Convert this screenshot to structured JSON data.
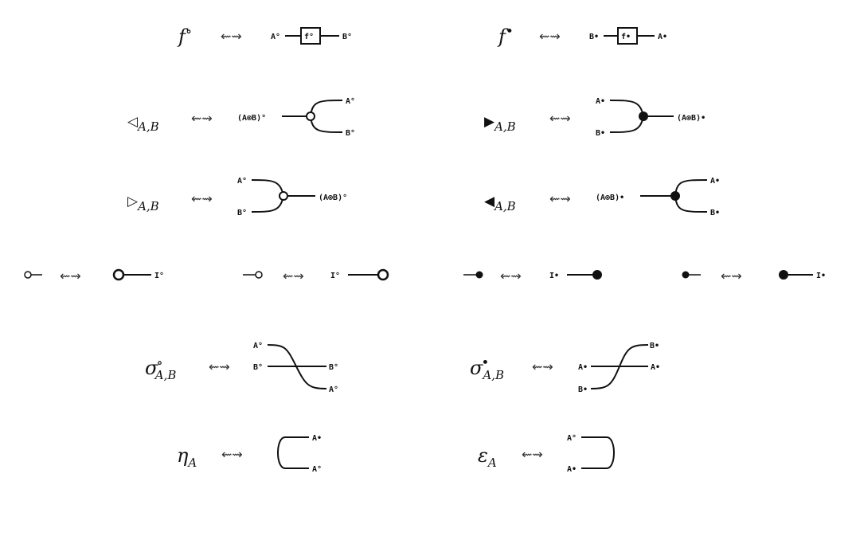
{
  "arrow": "⇜⇝",
  "sym": {
    "white_dot": "∘",
    "black_dot": "•"
  },
  "rows": {
    "f": {
      "white": {
        "base": "f",
        "mark": "∘",
        "in": "A°",
        "box": "f°",
        "out": "B°"
      },
      "black": {
        "base": "f",
        "mark": "•",
        "in": "B•",
        "box": "f•",
        "out": "A•"
      }
    },
    "merge1": {
      "white": {
        "tri": "◁",
        "sub": "A,B",
        "left": "(A⊗B)°",
        "top": "A°",
        "bottom": "B°"
      },
      "black": {
        "tri": "▶",
        "sub": "A,B",
        "top": "A•",
        "bottom": "B•",
        "right": "(A⊗B)•"
      }
    },
    "merge2": {
      "white": {
        "tri": "▷",
        "sub": "A,B",
        "top": "A°",
        "bottom": "B°",
        "right": "(A⊗B)°"
      },
      "black": {
        "tri": "◀",
        "sub": "A,B",
        "left": "(A⊗B)•",
        "top": "A•",
        "bottom": "B•"
      }
    },
    "units": [
      {
        "sym": "○—",
        "wire": "I°"
      },
      {
        "sym": "—○",
        "wire": "I°"
      },
      {
        "sym": "—●",
        "wire": "I•"
      },
      {
        "sym": "●—",
        "wire": "I•"
      }
    ],
    "sigma": {
      "white": {
        "base": "σ",
        "mark": "∘",
        "sub": "A,B",
        "a_in": "A°",
        "b_in": "B°",
        "b_out": "B°",
        "a_out": "A°"
      },
      "black": {
        "base": "σ",
        "mark": "•",
        "sub": "A,B",
        "b_out": "B•",
        "a_in": "A•",
        "a_out": "A•",
        "b_in": "B•"
      }
    },
    "cups": {
      "eta": {
        "base": "η",
        "sub": "A",
        "top": "A•",
        "bottom": "A°"
      },
      "eps": {
        "base": "ε",
        "sub": "A",
        "top": "A°",
        "bottom": "A•"
      }
    }
  }
}
